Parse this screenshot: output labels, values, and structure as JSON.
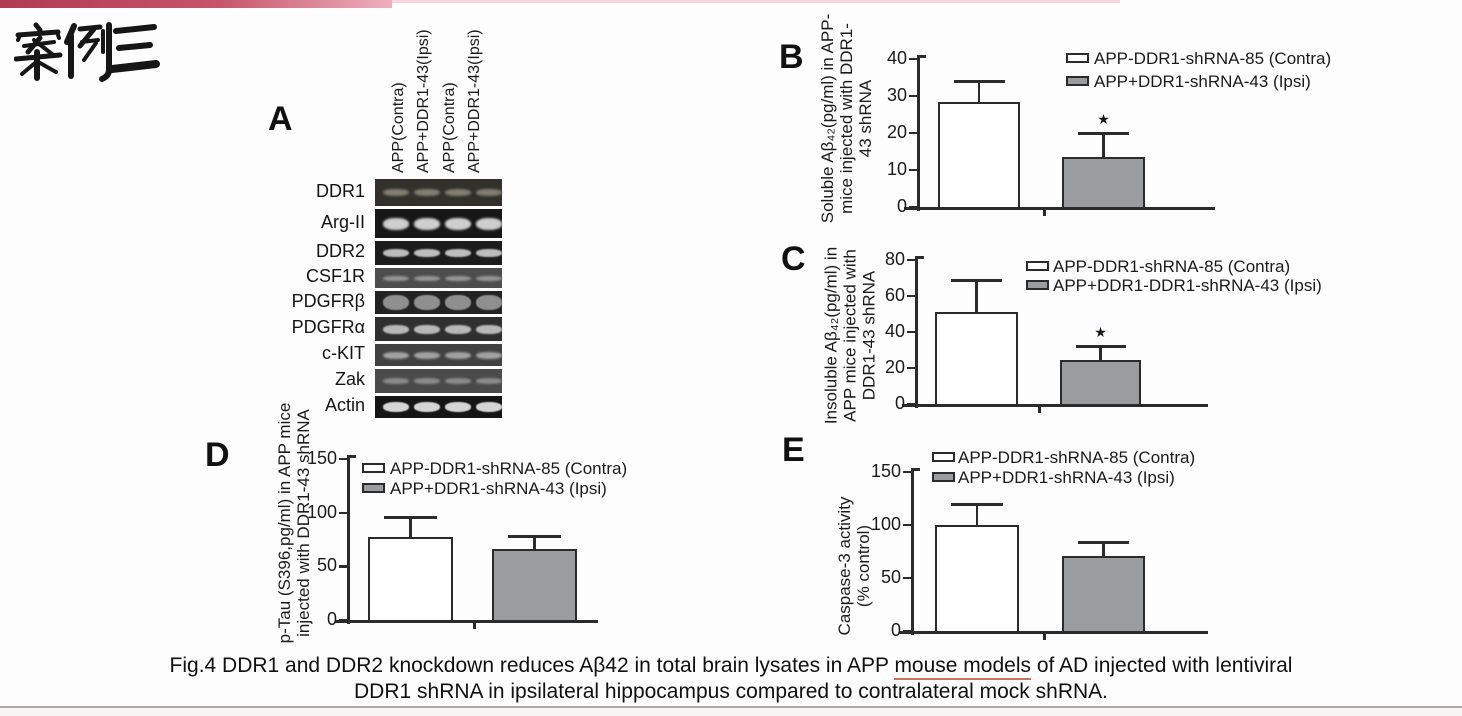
{
  "slide": {
    "title": "案例三"
  },
  "colors": {
    "accent_bar": "#b23a52",
    "accent_bar_light": "#eeb0bd",
    "bar_gray": "#9a9c9e",
    "axis": "#2b2b2b",
    "caption_underline": "#c4735c",
    "bottom_divider": "#a8a8a8"
  },
  "panelA": {
    "label": "A",
    "lane_labels": [
      "APP(Contra)",
      "APP+DDR1-43(Ipsi)",
      "APP(Contra)",
      "APP+DDR1-43(Ipsi)"
    ],
    "rows": [
      "DDR1",
      "Arg-II",
      "DDR2",
      "CSF1R",
      "PDGFRβ",
      "PDGFRα",
      "c-KIT",
      "Zak",
      "Actin"
    ]
  },
  "chart_data": [
    {
      "id": "B",
      "type": "bar",
      "panel_label": "B",
      "grid": false,
      "legend_position": "top-right",
      "ylabel_lines": [
        "Soluble Aβ₄₂(pg/ml) in APP-",
        "mice injected with DDR1-",
        "43 shRNA"
      ],
      "ylim": [
        0,
        40
      ],
      "yticks": [
        0,
        10,
        20,
        30,
        40
      ],
      "categories": [
        "APP-DDR1-shRNA-85 (Contra)",
        "APP+DDR1-shRNA-43 (Ipsi)"
      ],
      "series": [
        {
          "name": "APP-DDR1-shRNA-85 (Contra)",
          "value": 28.5,
          "error": 5.5,
          "fill": "#ffffff",
          "significance": ""
        },
        {
          "name": "APP+DDR1-shRNA-43 (Ipsi)",
          "value": 13.5,
          "error": 6.5,
          "fill": "#9a9c9e",
          "significance": "*"
        }
      ]
    },
    {
      "id": "C",
      "type": "bar",
      "panel_label": "C",
      "grid": false,
      "legend_position": "top-right",
      "ylabel_lines": [
        "Insoluble Aβ₄₂(pg/ml) in",
        "APP mice injected with",
        "DDR1-43 shRNA"
      ],
      "ylim": [
        0,
        80
      ],
      "yticks": [
        0,
        20,
        40,
        60,
        80
      ],
      "categories": [
        "APP-DDR1-shRNA-85 (Contra)",
        "APP+DDR1-DDR1-shRNA-43 (Ipsi)"
      ],
      "series": [
        {
          "name": "APP-DDR1-shRNA-85 (Contra)",
          "value": 51,
          "error": 18,
          "fill": "#ffffff",
          "significance": ""
        },
        {
          "name": "APP+DDR1-DDR1-shRNA-43 (Ipsi)",
          "value": 24.5,
          "error": 8,
          "fill": "#9a9c9e",
          "significance": "*"
        }
      ]
    },
    {
      "id": "D",
      "type": "bar",
      "panel_label": "D",
      "grid": false,
      "legend_position": "top-right",
      "ylabel_lines": [
        "p-Tau (S396,pg/ml) in APP mice",
        "injected with DDR1-43 shRNA"
      ],
      "ylim": [
        0,
        150
      ],
      "yticks": [
        0,
        50,
        100,
        150
      ],
      "categories": [
        "APP-DDR1-shRNA-85 (Contra)",
        "APP+DDR1-shRNA-43 (Ipsi)"
      ],
      "series": [
        {
          "name": "APP-DDR1-shRNA-85 (Contra)",
          "value": 77,
          "error": 19,
          "fill": "#ffffff",
          "significance": ""
        },
        {
          "name": "APP+DDR1-shRNA-43 (Ipsi)",
          "value": 66,
          "error": 12,
          "fill": "#9a9c9e",
          "significance": ""
        }
      ]
    },
    {
      "id": "E",
      "type": "bar",
      "panel_label": "E",
      "grid": false,
      "legend_position": "top-right",
      "ylabel_lines": [
        "Caspase-3 activity",
        "(% control)"
      ],
      "ylim": [
        0,
        150
      ],
      "yticks": [
        0,
        50,
        100,
        150
      ],
      "categories": [
        "APP-DDR1-shRNA-85 (Contra)",
        "APP+DDR1-shRNA-43 (Ipsi)"
      ],
      "series": [
        {
          "name": "APP-DDR1-shRNA-85 (Contra)",
          "value": 100,
          "error": 20,
          "fill": "#ffffff",
          "significance": ""
        },
        {
          "name": "APP+DDR1-shRNA-43 (Ipsi)",
          "value": 71,
          "error": 13,
          "fill": "#9a9c9e",
          "significance": ""
        }
      ]
    }
  ],
  "caption": {
    "line1_pre": "Fig.4 DDR1 and DDR2 knockdown reduces Aβ42 in total brain lysates in APP ",
    "line1_underlined": "mouse models",
    "line1_post": " of AD injected with lentiviral",
    "line2": "DDR1 shRNA in ipsilateral hippocampus compared to contralateral mock shRNA."
  }
}
